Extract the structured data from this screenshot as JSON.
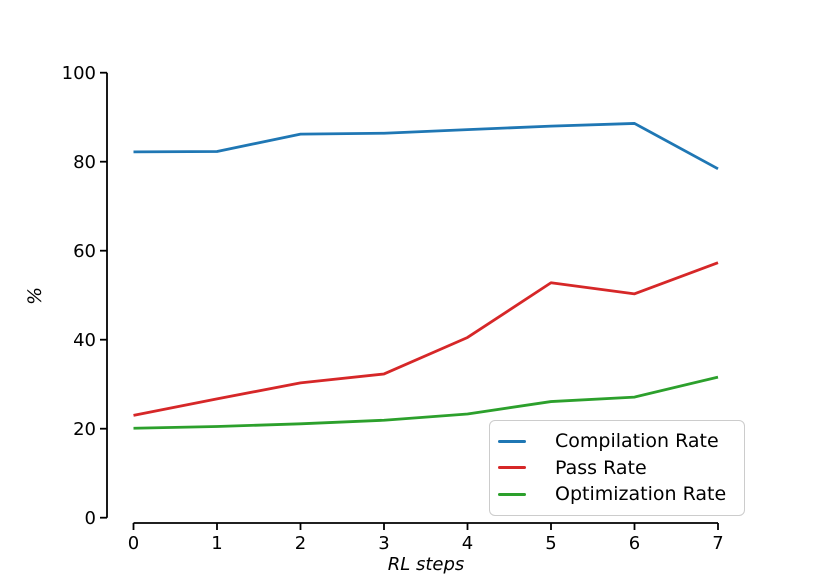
{
  "figure": {
    "background": "#ffffff",
    "text_color": "#000000"
  },
  "chart_data": {
    "type": "line",
    "title": "",
    "xlabel": "RL steps",
    "ylabel": "%",
    "x": [
      0,
      1,
      2,
      3,
      4,
      5,
      6,
      7
    ],
    "xticks": [
      "0",
      "1",
      "2",
      "3",
      "4",
      "5",
      "6",
      "7"
    ],
    "yticks": [
      "0",
      "20",
      "40",
      "60",
      "80",
      "100"
    ],
    "xlim": [
      0,
      7
    ],
    "ylim": [
      0,
      100
    ],
    "grid": false,
    "legend_position": "lower right",
    "series": [
      {
        "name": "Compilation Rate",
        "color": "#1f77b4",
        "values": [
          82.2,
          82.3,
          86.2,
          86.4,
          87.2,
          88.0,
          88.6,
          78.4
        ]
      },
      {
        "name": "Pass Rate",
        "color": "#d62728",
        "values": [
          23.0,
          26.7,
          30.3,
          32.3,
          40.5,
          52.8,
          50.3,
          57.3
        ]
      },
      {
        "name": "Optimization Rate",
        "color": "#2ca02c",
        "values": [
          20.1,
          20.5,
          21.1,
          21.9,
          23.3,
          26.1,
          27.1,
          31.6
        ]
      }
    ]
  }
}
